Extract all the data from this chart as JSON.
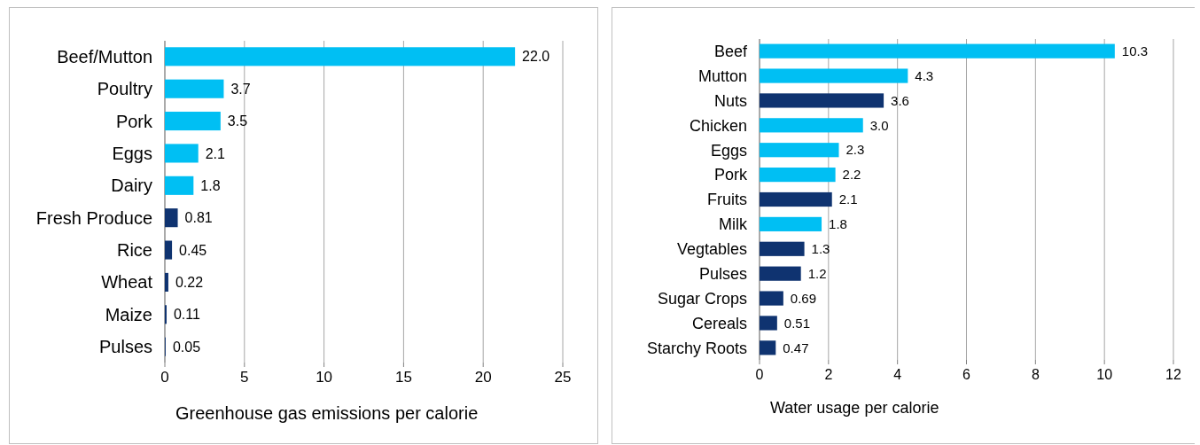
{
  "chart_data": [
    {
      "type": "bar",
      "orientation": "horizontal",
      "xlabel": "Greenhouse gas emissions per calorie",
      "categories": [
        "Beef/Mutton",
        "Poultry",
        "Pork",
        "Eggs",
        "Dairy",
        "Fresh Produce",
        "Rice",
        "Wheat",
        "Maize",
        "Pulses"
      ],
      "values": [
        22.0,
        3.7,
        3.5,
        2.1,
        1.8,
        0.81,
        0.45,
        0.22,
        0.11,
        0.05
      ],
      "value_labels": [
        "22.0",
        "3.7",
        "3.5",
        "2.1",
        "1.8",
        "0.81",
        "0.45",
        "0.22",
        "0.11",
        "0.05"
      ],
      "colors": [
        "#00bff3",
        "#00bff3",
        "#00bff3",
        "#00bff3",
        "#00bff3",
        "#0f3370",
        "#0f3370",
        "#0f3370",
        "#0f3370",
        "#0f3370"
      ],
      "xlim": [
        0,
        25
      ],
      "xticks": [
        0,
        5,
        10,
        15,
        20,
        25
      ],
      "grid": "x"
    },
    {
      "type": "bar",
      "orientation": "horizontal",
      "xlabel": "Water usage per calorie",
      "categories": [
        "Beef",
        "Mutton",
        "Nuts",
        "Chicken",
        "Eggs",
        "Pork",
        "Fruits",
        "Milk",
        "Vegtables",
        "Pulses",
        "Sugar Crops",
        "Cereals",
        "Starchy Roots"
      ],
      "values": [
        10.3,
        4.3,
        3.6,
        3.0,
        2.3,
        2.2,
        2.1,
        1.8,
        1.3,
        1.2,
        0.69,
        0.51,
        0.47
      ],
      "value_labels": [
        "10.3",
        "4.3",
        "3.6",
        "3.0",
        "2.3",
        "2.2",
        "2.1",
        "1.8",
        "1.3",
        "1.2",
        "0.69",
        "0.51",
        "0.47"
      ],
      "colors": [
        "#00bff3",
        "#00bff3",
        "#0f3370",
        "#00bff3",
        "#00bff3",
        "#00bff3",
        "#0f3370",
        "#00bff3",
        "#0f3370",
        "#0f3370",
        "#0f3370",
        "#0f3370",
        "#0f3370"
      ],
      "xlim": [
        0,
        12
      ],
      "xticks": [
        0,
        2,
        4,
        6,
        8,
        10,
        12
      ],
      "grid": "x"
    }
  ]
}
